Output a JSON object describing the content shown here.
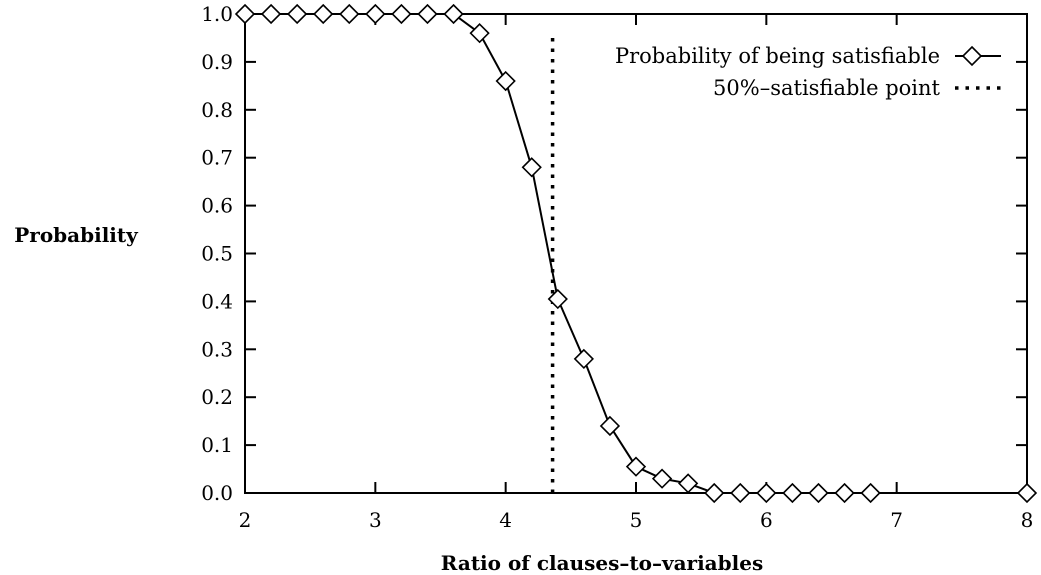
{
  "chart_data": {
    "type": "line",
    "title": "",
    "xlabel": "Ratio of clauses–to–variables",
    "ylabel": "Probability",
    "xlim": [
      2,
      8
    ],
    "ylim": [
      0.0,
      1.0
    ],
    "x_ticks": [
      "2",
      "3",
      "4",
      "5",
      "6",
      "7",
      "8"
    ],
    "y_ticks": [
      "0.0",
      "0.1",
      "0.2",
      "0.3",
      "0.4",
      "0.5",
      "0.6",
      "0.7",
      "0.8",
      "0.9",
      "1.0"
    ],
    "legend_position": "top-right",
    "grid": false,
    "series": [
      {
        "name": "Probability of being satisfiable",
        "marker": "diamond",
        "color": "#000000",
        "x": [
          2.0,
          2.2,
          2.4,
          2.6,
          2.8,
          3.0,
          3.2,
          3.4,
          3.6,
          3.8,
          4.0,
          4.2,
          4.4,
          4.6,
          4.8,
          5.0,
          5.2,
          5.4,
          5.6,
          5.8,
          6.0,
          6.2,
          6.4,
          6.6,
          6.8,
          8.0
        ],
        "y": [
          1.0,
          1.0,
          1.0,
          1.0,
          1.0,
          1.0,
          1.0,
          1.0,
          1.0,
          0.96,
          0.86,
          0.68,
          0.405,
          0.28,
          0.14,
          0.055,
          0.03,
          0.02,
          0.0,
          0.0,
          0.0,
          0.0,
          0.0,
          0.0,
          0.0,
          0.0
        ]
      }
    ],
    "reference_lines": [
      {
        "name": "50%–satisfiable point",
        "orientation": "vertical",
        "x": 4.36,
        "style": "dotted",
        "color": "#000000"
      }
    ]
  }
}
